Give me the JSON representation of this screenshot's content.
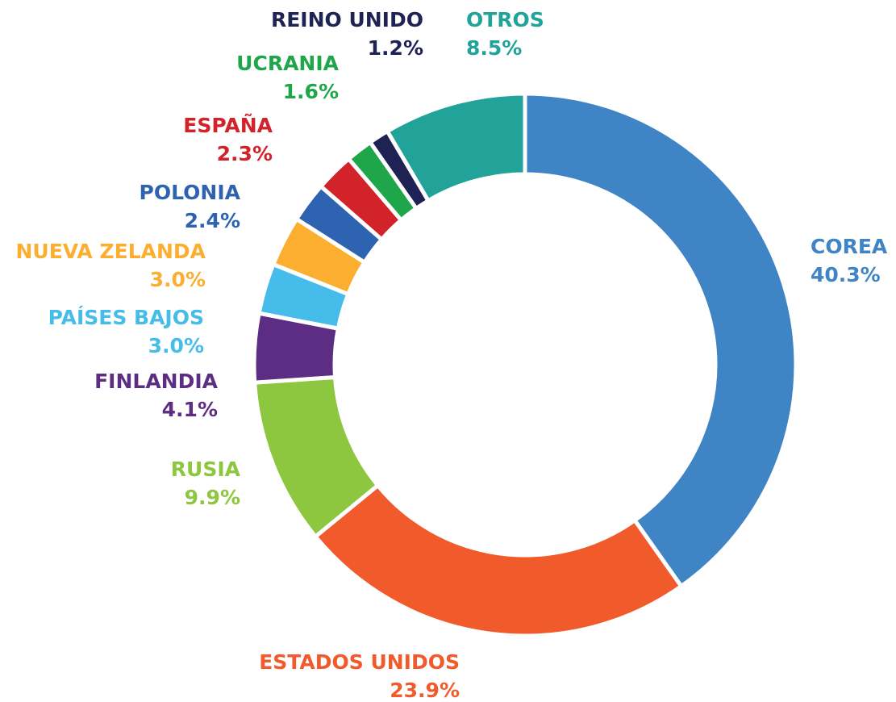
{
  "chart_data": {
    "type": "donut",
    "categories": [
      "COREA",
      "ESTADOS UNIDOS",
      "RUSIA",
      "FINLANDIA",
      "PAÍSES BAJOS",
      "NUEVA ZELANDA",
      "POLONIA",
      "ESPAÑA",
      "UCRANIA",
      "REINO UNIDO",
      "OTROS"
    ],
    "values": [
      40.3,
      23.9,
      9.9,
      4.1,
      3.0,
      3.0,
      2.4,
      2.3,
      1.6,
      1.2,
      8.5
    ],
    "value_labels": [
      "40.3%",
      "23.9%",
      "9.9%",
      "4.1%",
      "3.0%",
      "3.0%",
      "2.4%",
      "2.3%",
      "1.6%",
      "1.2%",
      "8.5%"
    ],
    "colors": [
      "#3f84c5",
      "#f15a2b",
      "#8dc63f",
      "#5c2d82",
      "#45bce9",
      "#fbae2f",
      "#2d63b1",
      "#d2232a",
      "#1fa64a",
      "#1f2354",
      "#22a39a"
    ]
  }
}
